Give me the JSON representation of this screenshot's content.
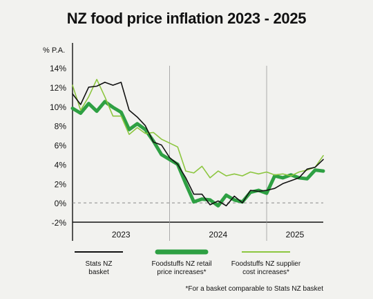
{
  "title": "NZ food price inflation 2023 - 2025",
  "chart_data": {
    "type": "line",
    "title": "NZ food price inflation 2023 - 2025",
    "ylabel": "% P.A.",
    "ylim": [
      -2,
      14
    ],
    "yticks": [
      "14%",
      "12%",
      "10%",
      "8%",
      "6%",
      "4%",
      "2%",
      "0%",
      "-2%"
    ],
    "x_range": [
      0,
      31
    ],
    "x_groups": [
      {
        "label": "2023",
        "start": 0,
        "end": 12
      },
      {
        "label": "2024",
        "start": 12,
        "end": 24
      },
      {
        "label": "2025",
        "start": 24,
        "end": 31
      }
    ],
    "x": [
      0,
      1,
      2,
      3,
      4,
      5,
      6,
      7,
      8,
      9,
      10,
      11,
      12,
      13,
      14,
      15,
      16,
      17,
      18,
      19,
      20,
      21,
      22,
      23,
      24,
      25,
      26,
      27,
      28,
      29,
      30,
      31
    ],
    "zero_line": "dashed",
    "series": [
      {
        "name": "Stats NZ basket",
        "color": "#111111",
        "width": 1.6,
        "values": [
          11.3,
          10.2,
          12.0,
          12.1,
          12.5,
          12.2,
          12.5,
          9.6,
          8.9,
          8.0,
          6.3,
          6.0,
          4.7,
          4.0,
          2.6,
          0.9,
          0.9,
          -0.2,
          0.2,
          -0.3,
          0.7,
          0.0,
          1.3,
          1.2,
          1.3,
          1.5,
          2.0,
          2.3,
          2.6,
          3.5,
          3.7,
          4.5
        ]
      },
      {
        "name": "Foodstuffs NZ retail price increases*",
        "color": "#2ea043",
        "width": 5,
        "values": [
          9.8,
          9.3,
          10.3,
          9.5,
          10.5,
          9.9,
          9.4,
          7.6,
          8.2,
          7.6,
          6.4,
          5.0,
          4.5,
          4.0,
          2.0,
          0.1,
          0.4,
          0.3,
          -0.3,
          0.8,
          0.3,
          0.1,
          1.1,
          1.3,
          1.0,
          2.8,
          2.6,
          2.9,
          2.6,
          2.5,
          3.4,
          3.3
        ]
      },
      {
        "name": "Foodstuffs NZ supplier cost increases*",
        "color": "#8cc63f",
        "width": 1.6,
        "values": [
          12.2,
          9.6,
          11.0,
          12.8,
          11.0,
          9.0,
          9.0,
          7.1,
          7.8,
          7.2,
          7.3,
          6.6,
          6.2,
          5.8,
          3.3,
          3.1,
          3.8,
          2.6,
          3.3,
          2.8,
          3.0,
          2.8,
          3.2,
          3.0,
          3.2,
          2.9,
          3.0,
          2.8,
          3.2,
          3.4,
          3.7,
          4.9
        ]
      }
    ],
    "legend": [
      {
        "line1": "Stats NZ",
        "line2": "basket"
      },
      {
        "line1": "Foodstuffs NZ retail",
        "line2": "price increases*"
      },
      {
        "line1": "Foodstuffs NZ supplier",
        "line2": "cost increases*"
      }
    ],
    "footnote": "*For a basket comparable to Stats NZ basket"
  }
}
